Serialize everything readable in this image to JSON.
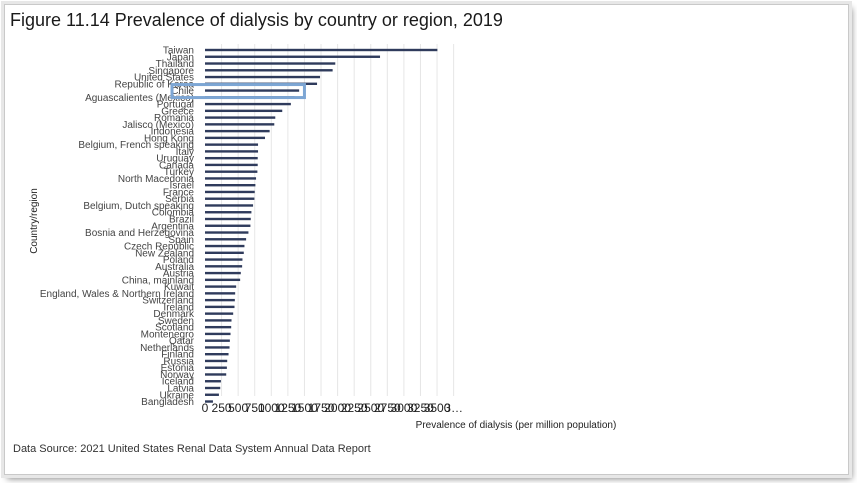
{
  "page": {
    "title": "Figure 11.14 Prevalence of dialysis by country or region, 2019",
    "source": "Data Source: 2021 United States Renal Data System Annual Data Report"
  },
  "colors": {
    "bar": "#2f3b5c",
    "grid": "#e6e6e6",
    "highlight": "#7da6d4"
  },
  "chart_data": {
    "type": "bar",
    "orientation": "horizontal",
    "title": "Figure 11.14 Prevalence of dialysis by country or region, 2019",
    "xlabel": "Prevalence of dialysis (per million population)",
    "ylabel": "Country/region",
    "xlim": [
      0,
      3750
    ],
    "xticks": [
      "0",
      "250",
      "500",
      "750",
      "1000",
      "1250",
      "1500",
      "1750",
      "2000",
      "2250",
      "2500",
      "2750",
      "3000",
      "3250",
      "3500",
      "3…"
    ],
    "highlighted": "Chile",
    "grid": true,
    "categories": [
      "Taiwan",
      "Japan",
      "Thailand",
      "Singapore",
      "United States",
      "Republic of Korea",
      "Chile",
      "Aguascalientes (Mexico)",
      "Portugal",
      "Greece",
      "Romania",
      "Jalisco (Mexico)",
      "Indonesia",
      "Hong Kong",
      "Belgium, French speaking",
      "Italy",
      "Uruguay",
      "Canada",
      "Turkey",
      "North Macedonia",
      "Israel",
      "France",
      "Serbia",
      "Belgium, Dutch speaking",
      "Colombia",
      "Brazil",
      "Argentina",
      "Bosnia and Herzegovina",
      "Spain",
      "Czech Republic",
      "New Zealand",
      "Poland",
      "Australia",
      "Austria",
      "China, mainland",
      "Kuwait",
      "England, Wales & Northern Ireland",
      "Switzerland",
      "Ireland",
      "Denmark",
      "Sweden",
      "Scotland",
      "Montenegro",
      "Qatar",
      "Netherlands",
      "Finland",
      "Russia",
      "Estonia",
      "Norway",
      "Iceland",
      "Latvia",
      "Ukraine",
      "Bangladesh"
    ],
    "values": [
      3505,
      2640,
      1965,
      1925,
      1735,
      1690,
      1420,
      1350,
      1295,
      1165,
      1060,
      1045,
      975,
      905,
      800,
      800,
      795,
      795,
      790,
      770,
      760,
      750,
      745,
      725,
      700,
      690,
      685,
      655,
      620,
      595,
      585,
      565,
      560,
      540,
      530,
      470,
      455,
      450,
      445,
      425,
      400,
      395,
      385,
      375,
      370,
      355,
      335,
      330,
      320,
      240,
      230,
      210,
      120
    ]
  }
}
